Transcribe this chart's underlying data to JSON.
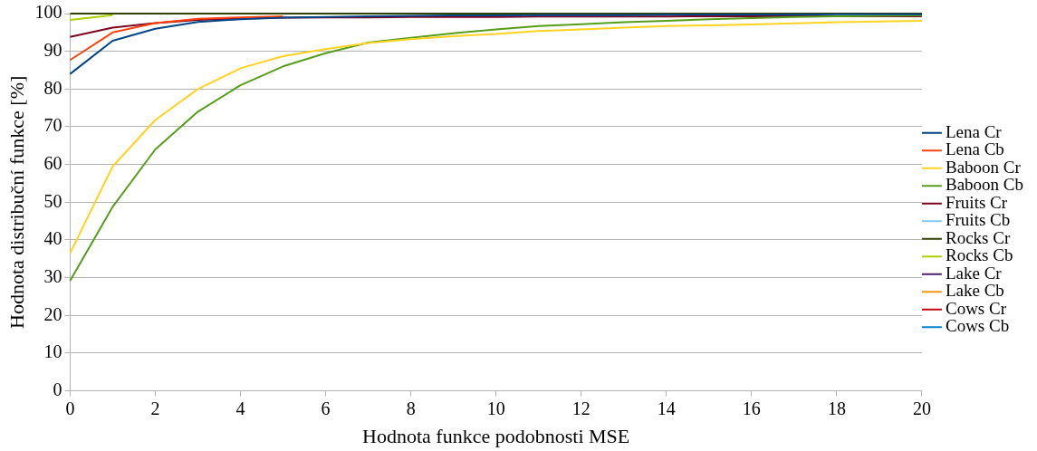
{
  "chart_data": {
    "type": "line",
    "xlabel": "Hodnota funkce podobnosti MSE",
    "ylabel": "Hodnota distribuční funkce [%]",
    "x": [
      0,
      1,
      2,
      3,
      4,
      5,
      6,
      7,
      8,
      9,
      10,
      11,
      12,
      13,
      14,
      15,
      16,
      17,
      18,
      19,
      20
    ],
    "xlim": [
      0,
      20
    ],
    "xticks": [
      0,
      2,
      4,
      6,
      8,
      10,
      12,
      14,
      16,
      18,
      20
    ],
    "ylim": [
      0,
      100
    ],
    "yticks": [
      0,
      10,
      20,
      30,
      40,
      50,
      60,
      70,
      80,
      90,
      100
    ],
    "grid": "y",
    "legend": "right",
    "marker": "none",
    "line_style": "solid",
    "series": [
      {
        "name": "Lena Cr",
        "color": "#004586",
        "values": [
          84,
          92.8,
          96,
          97.8,
          98.5,
          98.9,
          99.1,
          99.3,
          99.4,
          99.5,
          99.5,
          99.6,
          99.6,
          99.6,
          99.7,
          99.7,
          99.7,
          99.7,
          99.8,
          99.8,
          99.8
        ]
      },
      {
        "name": "Lena Cb",
        "color": "#ff420e",
        "values": [
          87.7,
          95,
          97.5,
          98.6,
          99,
          99.3,
          null,
          null,
          null,
          null,
          null,
          null,
          null,
          null,
          null,
          null,
          null,
          null,
          null,
          null,
          null
        ]
      },
      {
        "name": "Baboon Cr",
        "color": "#ffd320",
        "values": [
          36.5,
          59.5,
          71.8,
          80,
          85.5,
          88.7,
          90.6,
          92.2,
          93.2,
          94,
          94.6,
          95.4,
          95.8,
          96.3,
          96.7,
          96.9,
          97.1,
          97.4,
          97.7,
          97.9,
          98.1
        ]
      },
      {
        "name": "Baboon Cb",
        "color": "#579d1c",
        "values": [
          29.2,
          48.8,
          64,
          74,
          81,
          86,
          89.5,
          92.3,
          93.6,
          94.8,
          95.8,
          96.7,
          97.2,
          97.7,
          98.1,
          98.5,
          98.8,
          99.1,
          99.3,
          99.4,
          99.5
        ]
      },
      {
        "name": "Fruits Cr",
        "color": "#7e0021",
        "values": [
          93.8,
          96.3,
          97.5,
          98.3,
          98.7,
          98.9,
          99,
          99,
          99.1,
          99.1,
          99.1,
          99.2,
          99.2,
          99.2,
          99.2,
          99.3,
          99.3,
          99.3,
          99.3,
          99.3,
          99.3
        ]
      },
      {
        "name": "Fruits Cb",
        "color": "#83caff",
        "values": [
          null,
          null,
          null,
          null,
          null,
          null,
          null,
          null,
          null,
          null,
          null,
          null,
          null,
          null,
          null,
          null,
          null,
          null,
          null,
          null,
          null
        ]
      },
      {
        "name": "Rocks Cr",
        "color": "#314004",
        "values": [
          100,
          100,
          100,
          100,
          100,
          100,
          100,
          100,
          100,
          100,
          100,
          100,
          100,
          100,
          100,
          100,
          100,
          100,
          100,
          100,
          100
        ]
      },
      {
        "name": "Rocks Cb",
        "color": "#aecf00",
        "values": [
          98.3,
          99.6,
          null,
          null,
          null,
          null,
          null,
          null,
          null,
          null,
          null,
          null,
          null,
          null,
          null,
          null,
          null,
          null,
          null,
          null,
          null
        ]
      },
      {
        "name": "Lake Cr",
        "color": "#4b1f6f",
        "values": [
          null,
          null,
          null,
          null,
          null,
          null,
          null,
          null,
          null,
          null,
          null,
          null,
          null,
          null,
          null,
          null,
          null,
          null,
          null,
          null,
          null
        ]
      },
      {
        "name": "Lake Cb",
        "color": "#ff950e",
        "values": [
          null,
          null,
          null,
          null,
          null,
          null,
          null,
          null,
          null,
          null,
          null,
          null,
          null,
          null,
          null,
          null,
          null,
          null,
          null,
          null,
          null
        ]
      },
      {
        "name": "Cows Cr",
        "color": "#c5000b",
        "values": [
          null,
          null,
          null,
          null,
          null,
          null,
          null,
          null,
          null,
          null,
          null,
          null,
          null,
          null,
          null,
          null,
          null,
          null,
          null,
          null,
          null
        ]
      },
      {
        "name": "Cows Cb",
        "color": "#0084d1",
        "values": [
          null,
          null,
          null,
          null,
          null,
          null,
          null,
          null,
          null,
          null,
          null,
          null,
          null,
          null,
          null,
          null,
          null,
          null,
          null,
          null,
          null
        ]
      }
    ]
  }
}
